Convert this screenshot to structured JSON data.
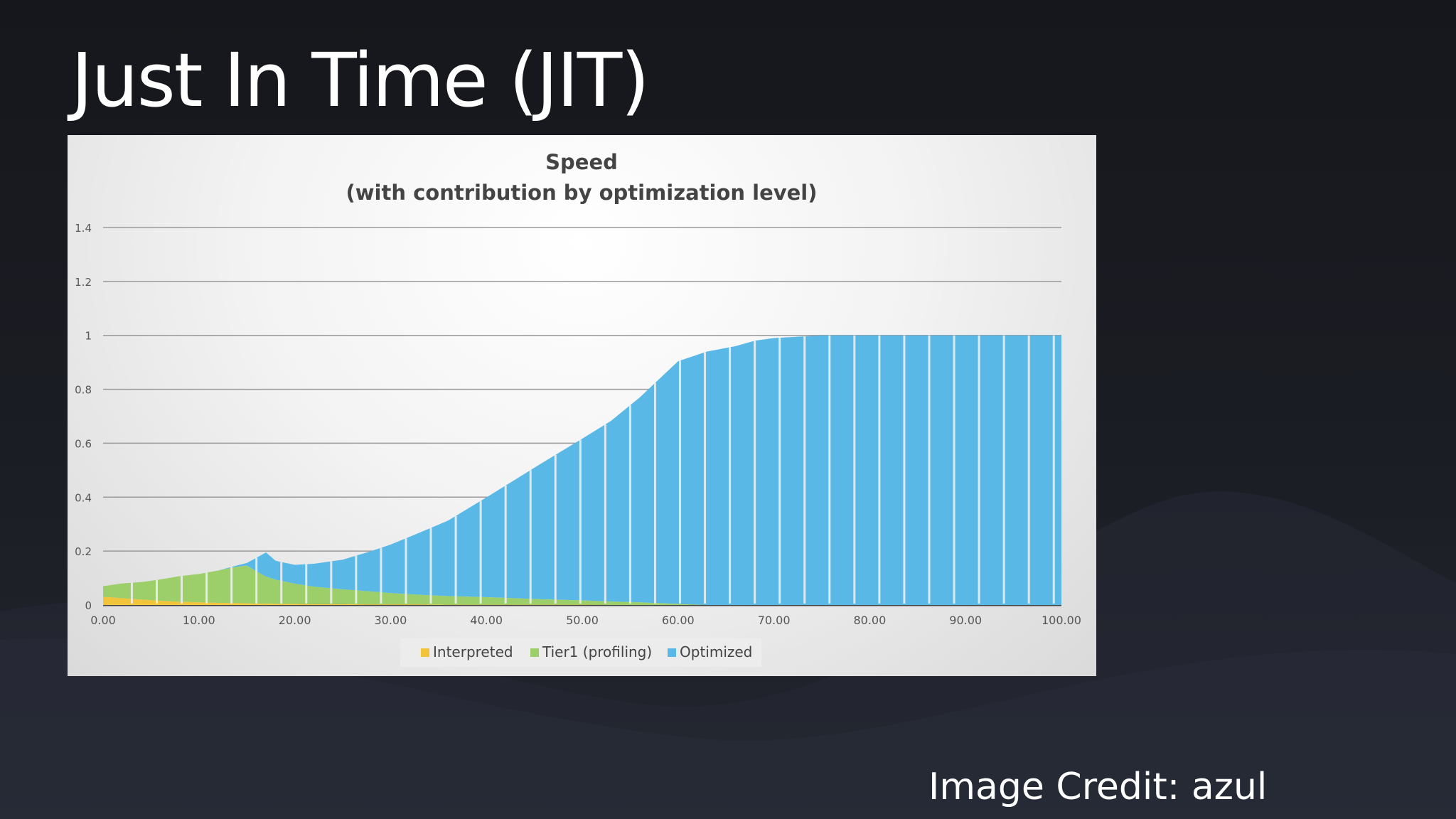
{
  "slide": {
    "title": "Just In Time (JIT)",
    "credit": "Image Credit: azul"
  },
  "colors": {
    "interpreted": "#f2c43a",
    "tier1": "#9ccf6a",
    "optimized": "#5ab8e6",
    "grid": "#9a9a9a"
  },
  "chart_data": {
    "type": "area",
    "title": "Speed",
    "subtitle": "(with contribution by optimization level)",
    "xlabel": "",
    "ylabel": "",
    "xlim": [
      0,
      100
    ],
    "ylim": [
      0,
      1.4
    ],
    "grid": true,
    "legend_position": "bottom",
    "x_ticks": [
      "0.00",
      "10.00",
      "20.00",
      "30.00",
      "40.00",
      "50.00",
      "60.00",
      "70.00",
      "80.00",
      "90.00",
      "100.00"
    ],
    "y_ticks": [
      "0",
      "0.2",
      "0.4",
      "0.6",
      "0.8",
      "1",
      "1.2",
      "1.4"
    ],
    "x": [
      0,
      2,
      4,
      6,
      8,
      10,
      12,
      14,
      15,
      16,
      17,
      18,
      20,
      22,
      25,
      28,
      30,
      33,
      36,
      40,
      43,
      46,
      50,
      53,
      56,
      58,
      60,
      63,
      66,
      68,
      70,
      75,
      80,
      85,
      90,
      95,
      100
    ],
    "series": [
      {
        "name": "Interpreted",
        "values": [
          0.03,
          0.025,
          0.02,
          0.015,
          0.012,
          0.01,
          0.008,
          0.007,
          0.006,
          0.005,
          0.005,
          0.004,
          0.004,
          0.003,
          0.003,
          0.002,
          0.002,
          0.002,
          0.001,
          0.001,
          0.001,
          0.001,
          0.001,
          0.0,
          0.0,
          0.0,
          0.0,
          0.0,
          0.0,
          0.0,
          0.0,
          0.0,
          0.0,
          0.0,
          0.0,
          0.0,
          0.0
        ]
      },
      {
        "name": "Tier1 (profiling)",
        "values": [
          0.04,
          0.055,
          0.065,
          0.08,
          0.095,
          0.105,
          0.12,
          0.135,
          0.14,
          0.12,
          0.1,
          0.09,
          0.075,
          0.065,
          0.055,
          0.048,
          0.042,
          0.036,
          0.032,
          0.028,
          0.024,
          0.02,
          0.016,
          0.013,
          0.01,
          0.007,
          0.004,
          0.0,
          0.0,
          0.0,
          0.0,
          0.0,
          0.0,
          0.0,
          0.0,
          0.0,
          0.0
        ]
      },
      {
        "name": "Optimized",
        "values": [
          0.0,
          0.0,
          0.0,
          0.0,
          0.0,
          0.0,
          0.0,
          0.005,
          0.01,
          0.05,
          0.09,
          0.07,
          0.07,
          0.085,
          0.11,
          0.15,
          0.18,
          0.23,
          0.28,
          0.37,
          0.44,
          0.51,
          0.6,
          0.67,
          0.76,
          0.83,
          0.9,
          0.94,
          0.96,
          0.98,
          0.99,
          1.0,
          1.0,
          1.0,
          1.0,
          1.0,
          1.0
        ]
      }
    ]
  }
}
